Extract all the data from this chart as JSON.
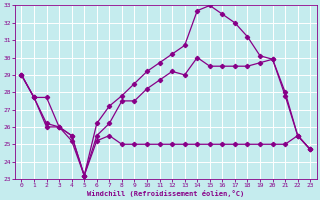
{
  "xlabel": "Windchill (Refroidissement éolien,°C)",
  "xlim": [
    -0.5,
    23.5
  ],
  "ylim": [
    23,
    33
  ],
  "yticks": [
    23,
    24,
    25,
    26,
    27,
    28,
    29,
    30,
    31,
    32,
    33
  ],
  "xticks": [
    0,
    1,
    2,
    3,
    4,
    5,
    6,
    7,
    8,
    9,
    10,
    11,
    12,
    13,
    14,
    15,
    16,
    17,
    18,
    19,
    20,
    21,
    22,
    23
  ],
  "background_color": "#c5ecee",
  "grid_color": "#ffffff",
  "line_color": "#880088",
  "series": [
    {
      "x": [
        0,
        1,
        2,
        3,
        4,
        5,
        6,
        7,
        8,
        9,
        10,
        11,
        12,
        13,
        14,
        15,
        16,
        17,
        18,
        19,
        20,
        21,
        22,
        23
      ],
      "y": [
        29.0,
        27.7,
        27.7,
        26.0,
        25.5,
        23.2,
        26.2,
        27.2,
        27.8,
        28.5,
        29.2,
        29.7,
        30.2,
        30.7,
        32.7,
        33.0,
        32.5,
        32.0,
        31.2,
        30.1,
        29.9,
        28.0,
        25.5,
        24.7
      ]
    },
    {
      "x": [
        0,
        1,
        2,
        3,
        4,
        5,
        6,
        7,
        8,
        9,
        10,
        11,
        12,
        13,
        14,
        15,
        16,
        17,
        18,
        19,
        20,
        21,
        22,
        23
      ],
      "y": [
        29.0,
        27.7,
        26.2,
        26.0,
        25.5,
        23.2,
        25.5,
        26.2,
        27.5,
        27.5,
        28.2,
        28.7,
        29.2,
        29.0,
        30.0,
        29.5,
        29.5,
        29.5,
        29.5,
        29.7,
        29.9,
        27.8,
        25.5,
        24.7
      ]
    },
    {
      "x": [
        0,
        1,
        2,
        3,
        4,
        5,
        6,
        7,
        8,
        9,
        10,
        11,
        12,
        13,
        14,
        15,
        16,
        17,
        18,
        19,
        20,
        21,
        22,
        23
      ],
      "y": [
        29.0,
        27.7,
        26.0,
        26.0,
        25.2,
        23.2,
        25.2,
        25.5,
        25.0,
        25.0,
        25.0,
        25.0,
        25.0,
        25.0,
        25.0,
        25.0,
        25.0,
        25.0,
        25.0,
        25.0,
        25.0,
        25.0,
        25.5,
        24.7
      ]
    }
  ]
}
